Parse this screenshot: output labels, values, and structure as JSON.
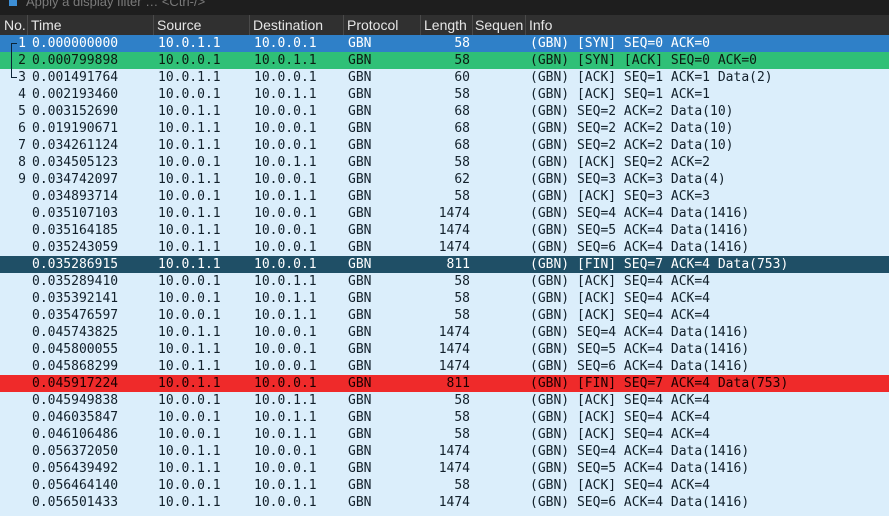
{
  "filter": {
    "placeholder": "Apply a display filter … <Ctrl-/>"
  },
  "columns": {
    "no": "No.",
    "time": "Time",
    "source": "Source",
    "destination": "Destination",
    "protocol": "Protocol",
    "length": "Length",
    "sequence": "Sequen",
    "info": "Info"
  },
  "colors": {
    "selected": "#2f80c8",
    "related": "#2fc077",
    "fin_highlight": "#1f4f66",
    "error": "#ef2a2a",
    "default_row": "#dbeefb"
  },
  "packets": [
    {
      "no": "1",
      "time": "0.000000000",
      "src": "10.0.1.1",
      "dst": "10.0.0.1",
      "proto": "GBN",
      "len": "58",
      "info": "(GBN) [SYN] SEQ=0 ACK=0",
      "style": "sel",
      "tree": "first"
    },
    {
      "no": "2",
      "time": "0.000799898",
      "src": "10.0.0.1",
      "dst": "10.0.1.1",
      "proto": "GBN",
      "len": "58",
      "info": "(GBN) [SYN] [ACK] SEQ=0 ACK=0",
      "style": "green",
      "tree": "mid"
    },
    {
      "no": "3",
      "time": "0.001491764",
      "src": "10.0.1.1",
      "dst": "10.0.0.1",
      "proto": "GBN",
      "len": "60",
      "info": "(GBN) [ACK] SEQ=1 ACK=1 Data(2)",
      "style": "",
      "tree": "last"
    },
    {
      "no": "4",
      "time": "0.002193460",
      "src": "10.0.0.1",
      "dst": "10.0.1.1",
      "proto": "GBN",
      "len": "58",
      "info": "(GBN) [ACK] SEQ=1 ACK=1",
      "style": "",
      "tree": ""
    },
    {
      "no": "5",
      "time": "0.003152690",
      "src": "10.0.1.1",
      "dst": "10.0.0.1",
      "proto": "GBN",
      "len": "68",
      "info": "(GBN) SEQ=2 ACK=2 Data(10)",
      "style": "",
      "tree": ""
    },
    {
      "no": "6",
      "time": "0.019190671",
      "src": "10.0.1.1",
      "dst": "10.0.0.1",
      "proto": "GBN",
      "len": "68",
      "info": "(GBN) SEQ=2 ACK=2 Data(10)",
      "style": "",
      "tree": ""
    },
    {
      "no": "7",
      "time": "0.034261124",
      "src": "10.0.1.1",
      "dst": "10.0.0.1",
      "proto": "GBN",
      "len": "68",
      "info": "(GBN) SEQ=2 ACK=2 Data(10)",
      "style": "",
      "tree": ""
    },
    {
      "no": "8",
      "time": "0.034505123",
      "src": "10.0.0.1",
      "dst": "10.0.1.1",
      "proto": "GBN",
      "len": "58",
      "info": "(GBN) [ACK] SEQ=2 ACK=2",
      "style": "",
      "tree": ""
    },
    {
      "no": "9",
      "time": "0.034742097",
      "src": "10.0.1.1",
      "dst": "10.0.0.1",
      "proto": "GBN",
      "len": "62",
      "info": "(GBN) SEQ=3 ACK=3 Data(4)",
      "style": "",
      "tree": ""
    },
    {
      "no": "",
      "time": "0.034893714",
      "src": "10.0.0.1",
      "dst": "10.0.1.1",
      "proto": "GBN",
      "len": "58",
      "info": "(GBN) [ACK] SEQ=3 ACK=3",
      "style": "",
      "tree": ""
    },
    {
      "no": "",
      "time": "0.035107103",
      "src": "10.0.1.1",
      "dst": "10.0.0.1",
      "proto": "GBN",
      "len": "1474",
      "info": "(GBN) SEQ=4 ACK=4 Data(1416)",
      "style": "",
      "tree": ""
    },
    {
      "no": "",
      "time": "0.035164185",
      "src": "10.0.1.1",
      "dst": "10.0.0.1",
      "proto": "GBN",
      "len": "1474",
      "info": "(GBN) SEQ=5 ACK=4 Data(1416)",
      "style": "",
      "tree": ""
    },
    {
      "no": "",
      "time": "0.035243059",
      "src": "10.0.1.1",
      "dst": "10.0.0.1",
      "proto": "GBN",
      "len": "1474",
      "info": "(GBN) SEQ=6 ACK=4 Data(1416)",
      "style": "",
      "tree": ""
    },
    {
      "no": "",
      "time": "0.035286915",
      "src": "10.0.1.1",
      "dst": "10.0.0.1",
      "proto": "GBN",
      "len": "811",
      "info": "(GBN) [FIN] SEQ=7 ACK=4 Data(753)",
      "style": "dark",
      "tree": ""
    },
    {
      "no": "",
      "time": "0.035289410",
      "src": "10.0.0.1",
      "dst": "10.0.1.1",
      "proto": "GBN",
      "len": "58",
      "info": "(GBN) [ACK] SEQ=4 ACK=4",
      "style": "",
      "tree": ""
    },
    {
      "no": "",
      "time": "0.035392141",
      "src": "10.0.0.1",
      "dst": "10.0.1.1",
      "proto": "GBN",
      "len": "58",
      "info": "(GBN) [ACK] SEQ=4 ACK=4",
      "style": "",
      "tree": ""
    },
    {
      "no": "",
      "time": "0.035476597",
      "src": "10.0.0.1",
      "dst": "10.0.1.1",
      "proto": "GBN",
      "len": "58",
      "info": "(GBN) [ACK] SEQ=4 ACK=4",
      "style": "",
      "tree": ""
    },
    {
      "no": "",
      "time": "0.045743825",
      "src": "10.0.1.1",
      "dst": "10.0.0.1",
      "proto": "GBN",
      "len": "1474",
      "info": "(GBN) SEQ=4 ACK=4 Data(1416)",
      "style": "",
      "tree": ""
    },
    {
      "no": "",
      "time": "0.045800055",
      "src": "10.0.1.1",
      "dst": "10.0.0.1",
      "proto": "GBN",
      "len": "1474",
      "info": "(GBN) SEQ=5 ACK=4 Data(1416)",
      "style": "",
      "tree": ""
    },
    {
      "no": "",
      "time": "0.045868299",
      "src": "10.0.1.1",
      "dst": "10.0.0.1",
      "proto": "GBN",
      "len": "1474",
      "info": "(GBN) SEQ=6 ACK=4 Data(1416)",
      "style": "",
      "tree": ""
    },
    {
      "no": "",
      "time": "0.045917224",
      "src": "10.0.1.1",
      "dst": "10.0.0.1",
      "proto": "GBN",
      "len": "811",
      "info": "(GBN) [FIN] SEQ=7 ACK=4 Data(753)",
      "style": "red",
      "tree": ""
    },
    {
      "no": "",
      "time": "0.045949838",
      "src": "10.0.0.1",
      "dst": "10.0.1.1",
      "proto": "GBN",
      "len": "58",
      "info": "(GBN) [ACK] SEQ=4 ACK=4",
      "style": "",
      "tree": ""
    },
    {
      "no": "",
      "time": "0.046035847",
      "src": "10.0.0.1",
      "dst": "10.0.1.1",
      "proto": "GBN",
      "len": "58",
      "info": "(GBN) [ACK] SEQ=4 ACK=4",
      "style": "",
      "tree": ""
    },
    {
      "no": "",
      "time": "0.046106486",
      "src": "10.0.0.1",
      "dst": "10.0.1.1",
      "proto": "GBN",
      "len": "58",
      "info": "(GBN) [ACK] SEQ=4 ACK=4",
      "style": "",
      "tree": ""
    },
    {
      "no": "",
      "time": "0.056372050",
      "src": "10.0.1.1",
      "dst": "10.0.0.1",
      "proto": "GBN",
      "len": "1474",
      "info": "(GBN) SEQ=4 ACK=4 Data(1416)",
      "style": "",
      "tree": ""
    },
    {
      "no": "",
      "time": "0.056439492",
      "src": "10.0.1.1",
      "dst": "10.0.0.1",
      "proto": "GBN",
      "len": "1474",
      "info": "(GBN) SEQ=5 ACK=4 Data(1416)",
      "style": "",
      "tree": ""
    },
    {
      "no": "",
      "time": "0.056464140",
      "src": "10.0.0.1",
      "dst": "10.0.1.1",
      "proto": "GBN",
      "len": "58",
      "info": "(GBN) [ACK] SEQ=4 ACK=4",
      "style": "",
      "tree": ""
    },
    {
      "no": "",
      "time": "0.056501433",
      "src": "10.0.1.1",
      "dst": "10.0.0.1",
      "proto": "GBN",
      "len": "1474",
      "info": "(GBN) SEQ=6 ACK=4 Data(1416)",
      "style": "",
      "tree": ""
    }
  ]
}
